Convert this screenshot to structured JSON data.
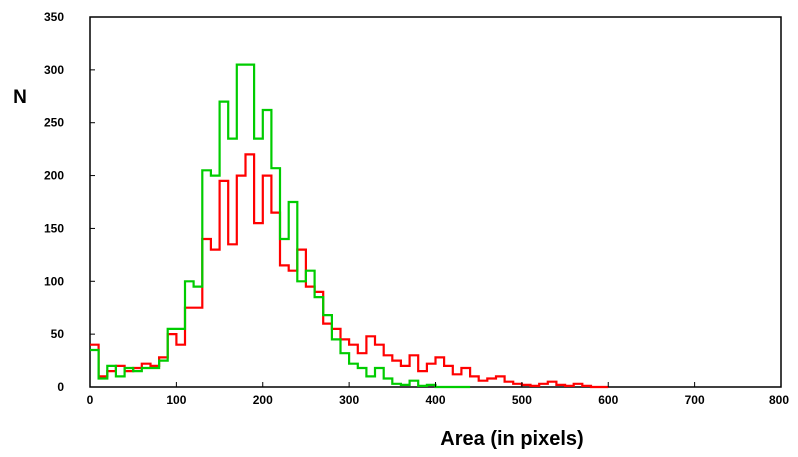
{
  "chart_data": {
    "type": "line",
    "step": true,
    "title": "",
    "xlabel": "Area (in pixels)",
    "ylabel": "N",
    "xlim": [
      0,
      800
    ],
    "ylim": [
      0,
      350
    ],
    "xticks": [
      0,
      100,
      200,
      300,
      400,
      500,
      600,
      700,
      800
    ],
    "yticks": [
      0,
      50,
      100,
      150,
      200,
      250,
      300,
      350
    ],
    "grid": false,
    "legend": "none",
    "bin_width": 10,
    "series": [
      {
        "color": "#ff0000",
        "x": [
          0,
          10,
          20,
          30,
          40,
          50,
          60,
          70,
          80,
          90,
          100,
          110,
          120,
          130,
          140,
          150,
          160,
          170,
          180,
          190,
          200,
          210,
          220,
          230,
          240,
          250,
          260,
          270,
          280,
          290,
          300,
          310,
          320,
          330,
          340,
          350,
          360,
          370,
          380,
          390,
          400,
          410,
          420,
          430,
          440,
          450,
          460,
          470,
          480,
          490,
          500,
          510,
          520,
          530,
          540,
          550,
          560,
          570,
          580,
          590
        ],
        "values": [
          40,
          10,
          15,
          20,
          15,
          18,
          22,
          20,
          28,
          50,
          40,
          75,
          75,
          140,
          130,
          195,
          135,
          200,
          220,
          155,
          200,
          165,
          115,
          110,
          130,
          95,
          90,
          60,
          55,
          45,
          40,
          32,
          48,
          40,
          30,
          25,
          20,
          30,
          15,
          22,
          28,
          20,
          12,
          18,
          10,
          6,
          8,
          10,
          5,
          3,
          2,
          1,
          3,
          5,
          2,
          1,
          3,
          1,
          0,
          0
        ]
      },
      {
        "color": "#00cc00",
        "x": [
          0,
          10,
          20,
          30,
          40,
          50,
          60,
          70,
          80,
          90,
          100,
          110,
          120,
          130,
          140,
          150,
          160,
          170,
          180,
          190,
          200,
          210,
          220,
          230,
          240,
          250,
          260,
          270,
          280,
          290,
          300,
          310,
          320,
          330,
          340,
          350,
          360,
          370,
          380,
          390,
          400,
          410,
          420,
          430
        ],
        "values": [
          35,
          8,
          20,
          10,
          18,
          15,
          18,
          18,
          25,
          55,
          55,
          100,
          95,
          205,
          200,
          270,
          235,
          305,
          305,
          235,
          262,
          207,
          140,
          175,
          100,
          110,
          85,
          68,
          45,
          32,
          22,
          18,
          10,
          18,
          8,
          3,
          2,
          6,
          1,
          2,
          0,
          0,
          0,
          0
        ]
      }
    ]
  }
}
